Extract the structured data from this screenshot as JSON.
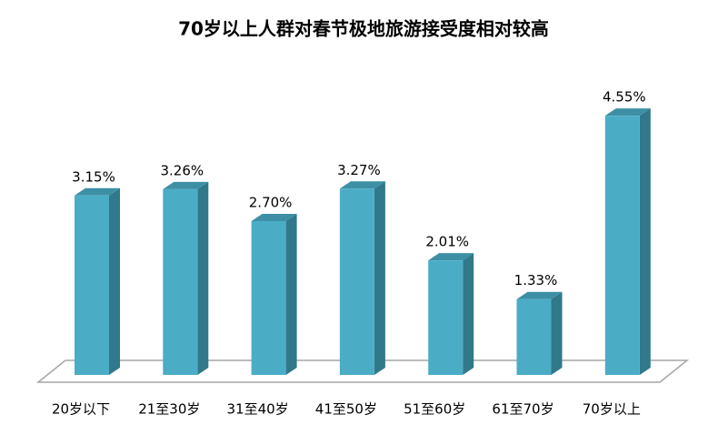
{
  "chart_data": {
    "type": "bar3d",
    "title": "70岁以上人群对春节极地旅游接受度相对较高",
    "categories": [
      "20岁以下",
      "21至30岁",
      "31至40岁",
      "41至50岁",
      "51至60岁",
      "61至70岁",
      "70岁以上"
    ],
    "values": [
      3.15,
      3.26,
      2.7,
      3.27,
      2.01,
      1.33,
      4.55
    ],
    "value_labels": [
      "3.15%",
      "3.26%",
      "2.70%",
      "3.27%",
      "2.01%",
      "1.33%",
      "4.55%"
    ],
    "color": "#4bacc6"
  }
}
